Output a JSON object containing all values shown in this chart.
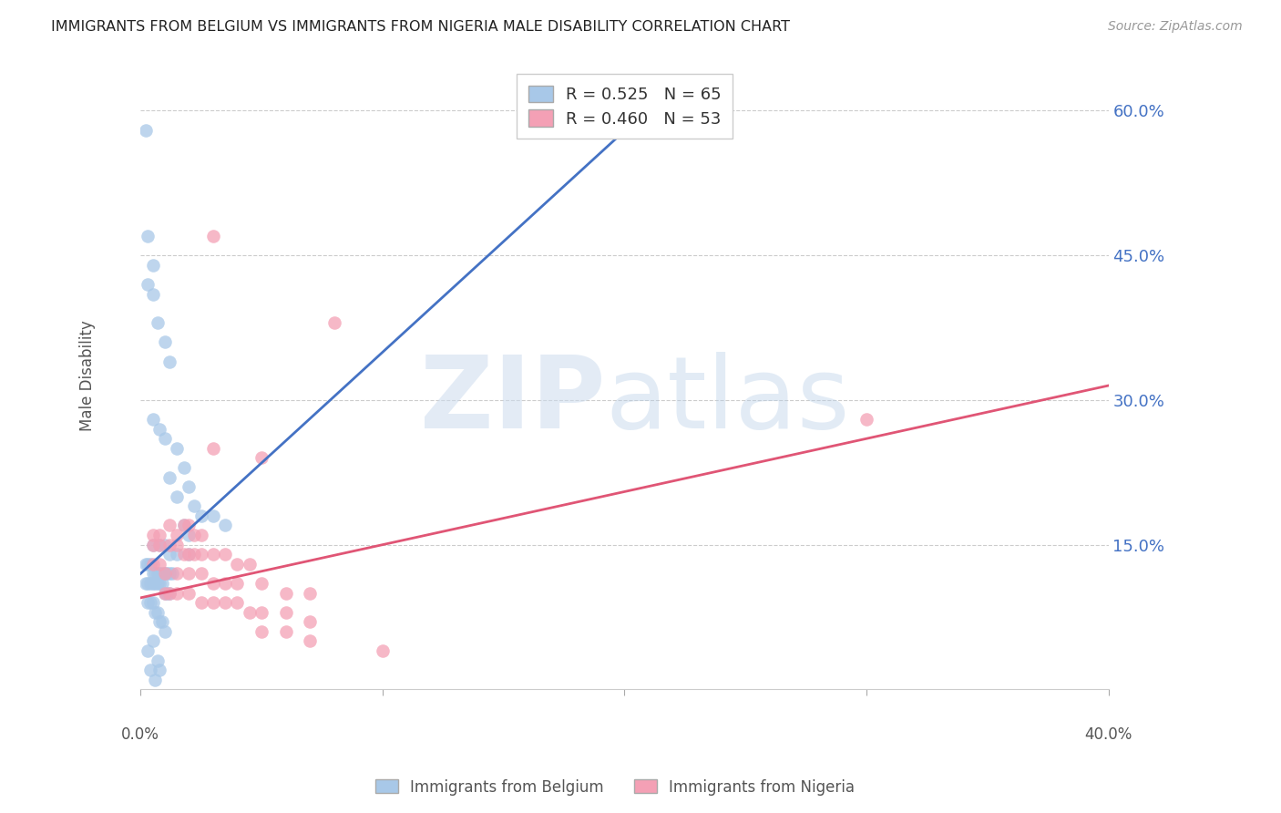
{
  "title": "IMMIGRANTS FROM BELGIUM VS IMMIGRANTS FROM NIGERIA MALE DISABILITY CORRELATION CHART",
  "source": "Source: ZipAtlas.com",
  "ylabel": "Male Disability",
  "ylabel_ticks_vals": [
    0.6,
    0.45,
    0.3,
    0.15
  ],
  "ylabel_ticks_labels": [
    "60.0%",
    "45.0%",
    "30.0%",
    "15.0%"
  ],
  "xlim": [
    0.0,
    0.4
  ],
  "ylim": [
    0.0,
    0.65
  ],
  "xtick_positions": [
    0.0,
    0.1,
    0.2,
    0.3,
    0.4
  ],
  "xtick_labels": [
    "0.0%",
    "",
    "",
    "",
    "40.0%"
  ],
  "belgium_color": "#a8c8e8",
  "nigeria_color": "#f4a0b5",
  "belgium_line_color": "#4472c4",
  "nigeria_line_color": "#e05575",
  "belgium_line": [
    [
      0.0,
      0.12
    ],
    [
      0.22,
      0.625
    ]
  ],
  "nigeria_line": [
    [
      0.0,
      0.095
    ],
    [
      0.4,
      0.315
    ]
  ],
  "belgium_scatter": [
    [
      0.002,
      0.58
    ],
    [
      0.003,
      0.47
    ],
    [
      0.005,
      0.44
    ],
    [
      0.003,
      0.42
    ],
    [
      0.005,
      0.41
    ],
    [
      0.007,
      0.38
    ],
    [
      0.01,
      0.36
    ],
    [
      0.012,
      0.34
    ],
    [
      0.005,
      0.28
    ],
    [
      0.008,
      0.27
    ],
    [
      0.01,
      0.26
    ],
    [
      0.015,
      0.25
    ],
    [
      0.018,
      0.23
    ],
    [
      0.012,
      0.22
    ],
    [
      0.02,
      0.21
    ],
    [
      0.015,
      0.2
    ],
    [
      0.022,
      0.19
    ],
    [
      0.025,
      0.18
    ],
    [
      0.03,
      0.18
    ],
    [
      0.035,
      0.17
    ],
    [
      0.018,
      0.17
    ],
    [
      0.02,
      0.16
    ],
    [
      0.005,
      0.15
    ],
    [
      0.008,
      0.15
    ],
    [
      0.01,
      0.15
    ],
    [
      0.012,
      0.14
    ],
    [
      0.015,
      0.14
    ],
    [
      0.02,
      0.14
    ],
    [
      0.002,
      0.13
    ],
    [
      0.003,
      0.13
    ],
    [
      0.004,
      0.13
    ],
    [
      0.005,
      0.12
    ],
    [
      0.006,
      0.12
    ],
    [
      0.007,
      0.12
    ],
    [
      0.008,
      0.12
    ],
    [
      0.009,
      0.12
    ],
    [
      0.01,
      0.12
    ],
    [
      0.011,
      0.12
    ],
    [
      0.012,
      0.12
    ],
    [
      0.013,
      0.12
    ],
    [
      0.002,
      0.11
    ],
    [
      0.003,
      0.11
    ],
    [
      0.004,
      0.11
    ],
    [
      0.005,
      0.11
    ],
    [
      0.006,
      0.11
    ],
    [
      0.007,
      0.11
    ],
    [
      0.008,
      0.11
    ],
    [
      0.009,
      0.11
    ],
    [
      0.01,
      0.1
    ],
    [
      0.011,
      0.1
    ],
    [
      0.012,
      0.1
    ],
    [
      0.003,
      0.09
    ],
    [
      0.004,
      0.09
    ],
    [
      0.005,
      0.09
    ],
    [
      0.006,
      0.08
    ],
    [
      0.007,
      0.08
    ],
    [
      0.008,
      0.07
    ],
    [
      0.009,
      0.07
    ],
    [
      0.01,
      0.06
    ],
    [
      0.005,
      0.05
    ],
    [
      0.003,
      0.04
    ],
    [
      0.007,
      0.03
    ],
    [
      0.004,
      0.02
    ],
    [
      0.008,
      0.02
    ],
    [
      0.006,
      0.01
    ]
  ],
  "nigeria_scatter": [
    [
      0.03,
      0.47
    ],
    [
      0.08,
      0.38
    ],
    [
      0.03,
      0.25
    ],
    [
      0.05,
      0.24
    ],
    [
      0.005,
      0.16
    ],
    [
      0.008,
      0.16
    ],
    [
      0.012,
      0.17
    ],
    [
      0.015,
      0.16
    ],
    [
      0.018,
      0.17
    ],
    [
      0.02,
      0.17
    ],
    [
      0.022,
      0.16
    ],
    [
      0.025,
      0.16
    ],
    [
      0.005,
      0.15
    ],
    [
      0.008,
      0.15
    ],
    [
      0.012,
      0.15
    ],
    [
      0.015,
      0.15
    ],
    [
      0.018,
      0.14
    ],
    [
      0.02,
      0.14
    ],
    [
      0.022,
      0.14
    ],
    [
      0.025,
      0.14
    ],
    [
      0.03,
      0.14
    ],
    [
      0.035,
      0.14
    ],
    [
      0.04,
      0.13
    ],
    [
      0.045,
      0.13
    ],
    [
      0.005,
      0.13
    ],
    [
      0.008,
      0.13
    ],
    [
      0.01,
      0.12
    ],
    [
      0.015,
      0.12
    ],
    [
      0.02,
      0.12
    ],
    [
      0.025,
      0.12
    ],
    [
      0.03,
      0.11
    ],
    [
      0.035,
      0.11
    ],
    [
      0.04,
      0.11
    ],
    [
      0.05,
      0.11
    ],
    [
      0.06,
      0.1
    ],
    [
      0.07,
      0.1
    ],
    [
      0.01,
      0.1
    ],
    [
      0.012,
      0.1
    ],
    [
      0.015,
      0.1
    ],
    [
      0.02,
      0.1
    ],
    [
      0.025,
      0.09
    ],
    [
      0.03,
      0.09
    ],
    [
      0.035,
      0.09
    ],
    [
      0.04,
      0.09
    ],
    [
      0.045,
      0.08
    ],
    [
      0.05,
      0.08
    ],
    [
      0.06,
      0.08
    ],
    [
      0.07,
      0.07
    ],
    [
      0.05,
      0.06
    ],
    [
      0.06,
      0.06
    ],
    [
      0.07,
      0.05
    ],
    [
      0.1,
      0.04
    ],
    [
      0.3,
      0.28
    ]
  ]
}
